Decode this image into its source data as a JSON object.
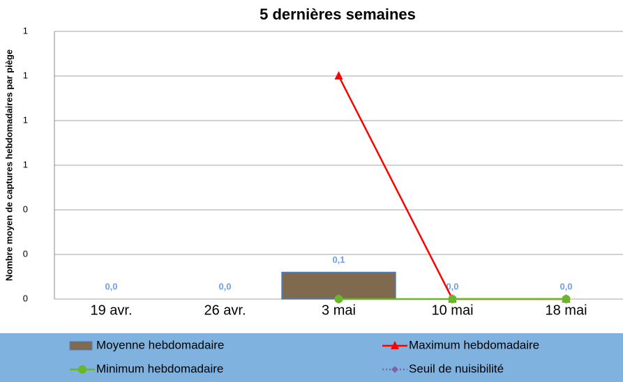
{
  "chart_data": {
    "type": "bar",
    "title": "5 dernières semaines",
    "y_label": "Nombre moyen de captures hebdomadaires par piège",
    "categories": [
      "19 avr.",
      "26 avr.",
      "3 mai",
      "10 mai",
      "18 mai"
    ],
    "series": [
      {
        "name": "Moyenne hebdomadaire",
        "type": "bar",
        "color": "#7f6a4f",
        "values": [
          0,
          0,
          0.12,
          0,
          0
        ],
        "value_labels": [
          "0,0",
          "0,0",
          "0,1",
          "0,0",
          "0,0"
        ]
      },
      {
        "name": "Maximum hebdomadaire",
        "type": "line",
        "marker": "triangle",
        "color": "#ff0000",
        "values": [
          null,
          null,
          1,
          0,
          0
        ]
      },
      {
        "name": "Minimum hebdomadaire",
        "type": "line",
        "marker": "circle",
        "color": "#6bb52a",
        "values": [
          null,
          null,
          0,
          0,
          0
        ]
      },
      {
        "name": "Seuil de nuisibilité",
        "type": "line",
        "marker": "diamond",
        "dashed": true,
        "color": "#8064a2",
        "values": [
          null,
          null,
          null,
          null,
          null
        ]
      }
    ],
    "ylim": [
      0,
      1.2
    ],
    "yticks": [
      {
        "value": 0,
        "label": "0"
      },
      {
        "value": 0.2,
        "label": "0"
      },
      {
        "value": 0.4,
        "label": "0"
      },
      {
        "value": 0.6,
        "label": "1"
      },
      {
        "value": 0.8,
        "label": "1"
      },
      {
        "value": 1.0,
        "label": "1"
      },
      {
        "value": 1.2,
        "label": "1"
      }
    ],
    "grid": true
  }
}
